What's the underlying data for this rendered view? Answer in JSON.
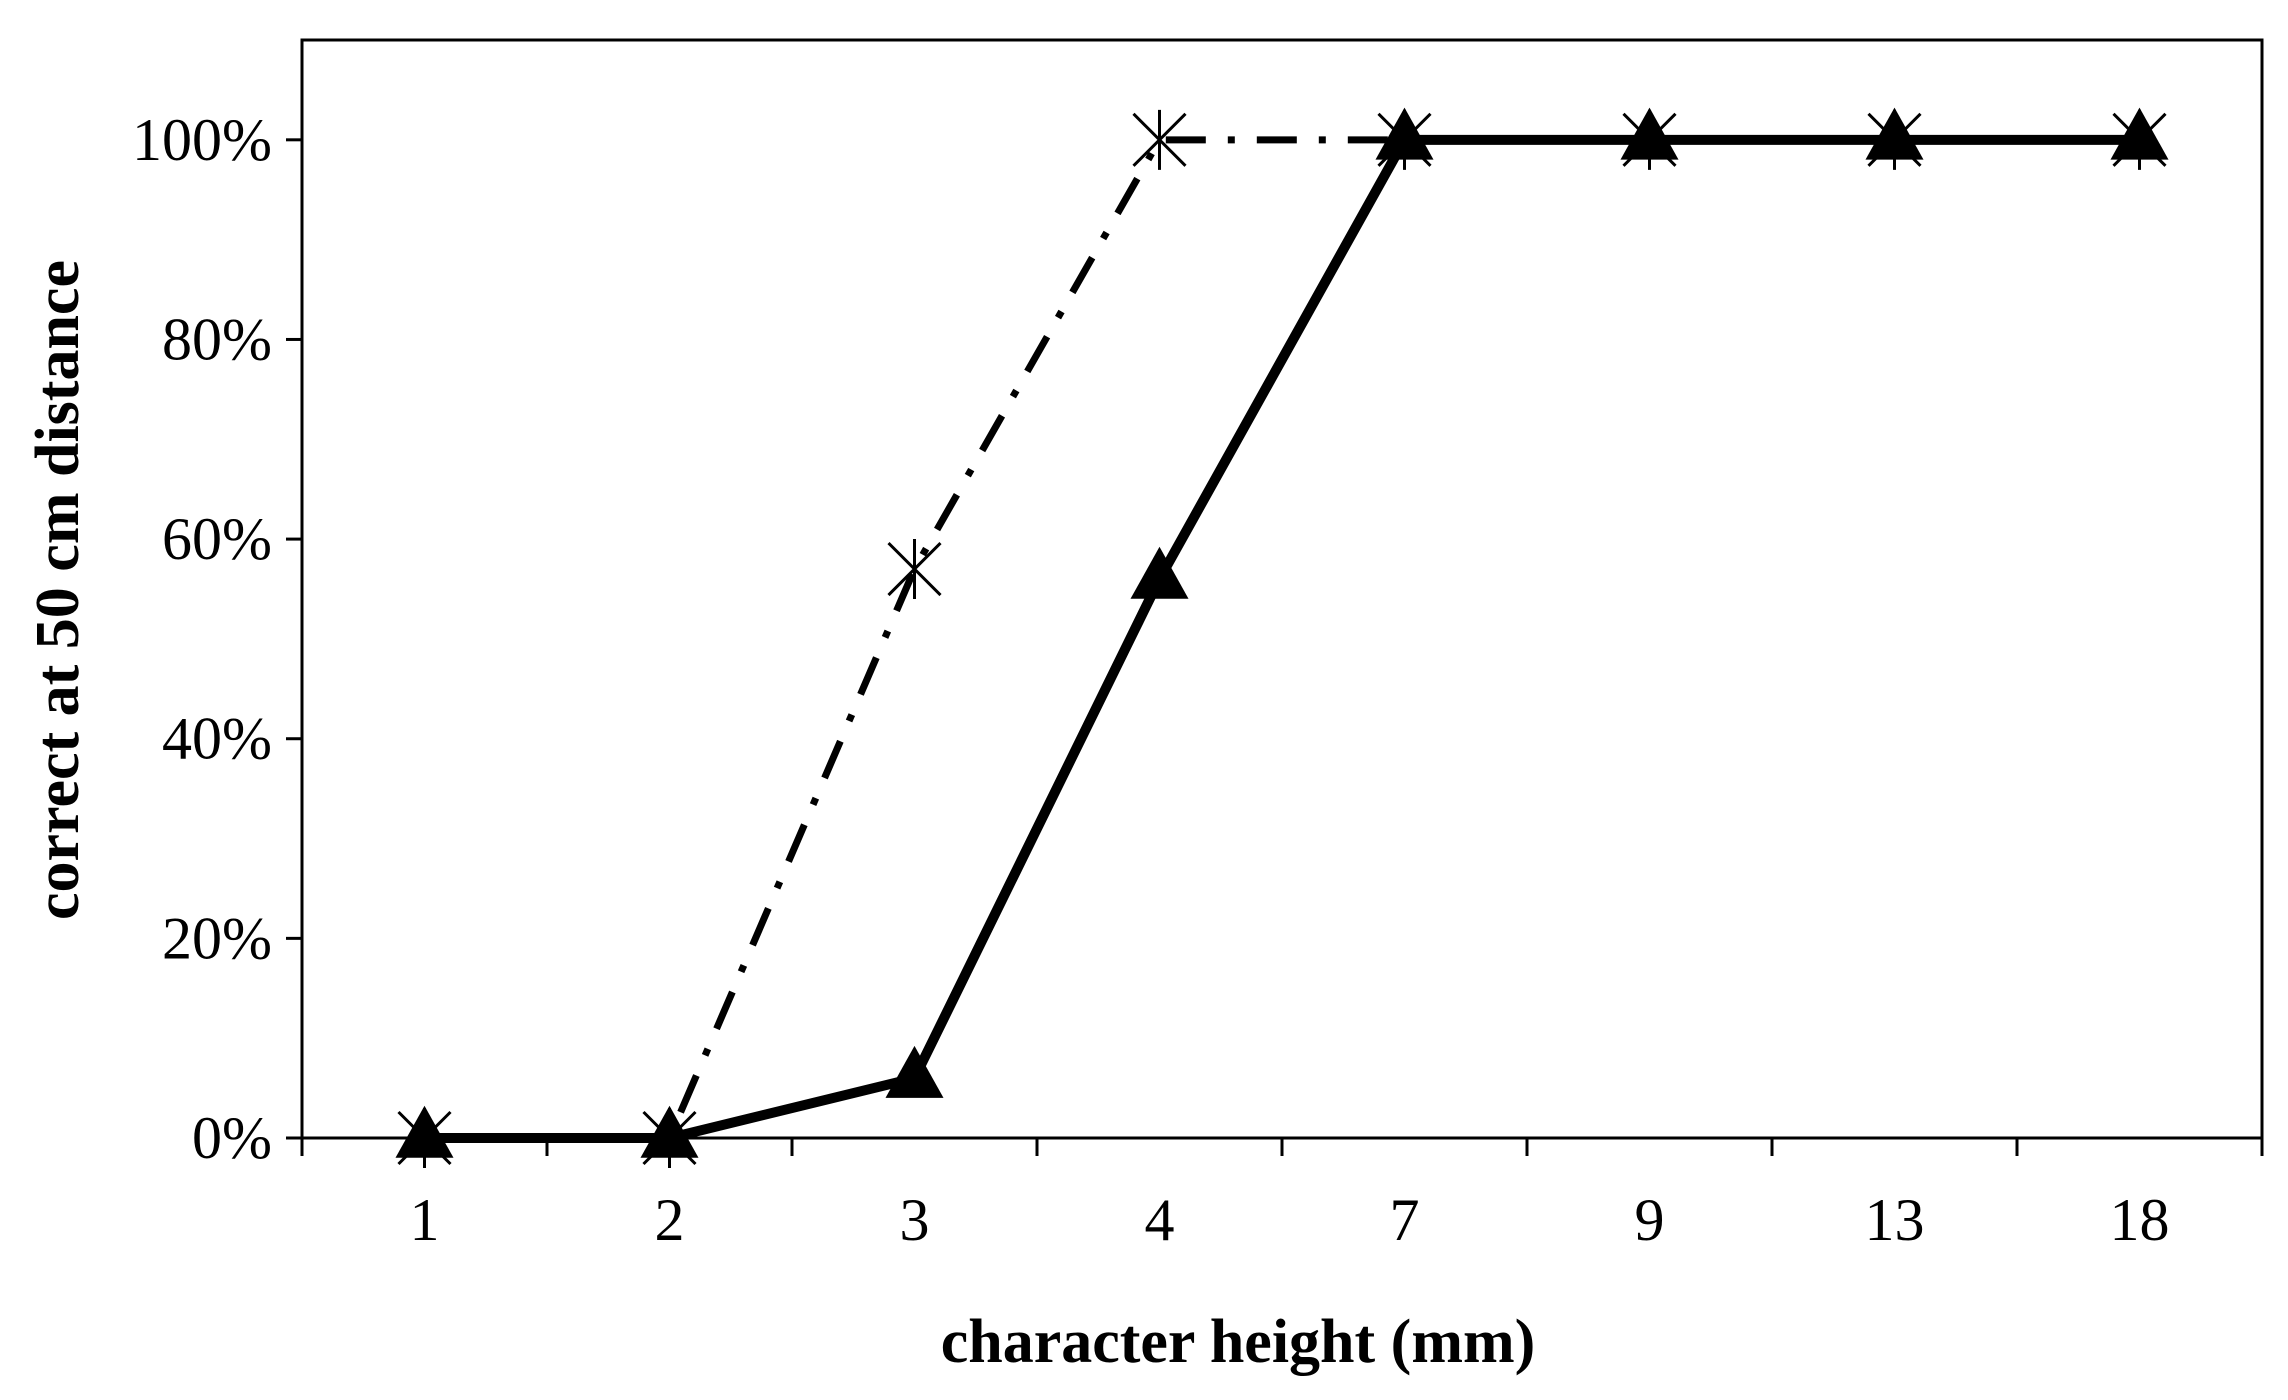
{
  "chart_data": {
    "type": "line",
    "title": "",
    "xlabel": "character height (mm)",
    "ylabel": "correct at 50 cm distance",
    "categories": [
      "1",
      "2",
      "3",
      "4",
      "7",
      "9",
      "13",
      "18"
    ],
    "y_ticks": [
      "0%",
      "20%",
      "40%",
      "60%",
      "80%",
      "100%"
    ],
    "ylim": [
      0,
      110
    ],
    "grid": false,
    "legend": "none",
    "series": [
      {
        "marker": "asterisk",
        "line_style": "dash-dot",
        "color": "#000000",
        "values": [
          0,
          0,
          57,
          100,
          100,
          100,
          100,
          100
        ]
      },
      {
        "marker": "triangle",
        "line_style": "solid",
        "color": "#000000",
        "values": [
          0,
          0,
          6,
          56,
          100,
          100,
          100,
          100
        ]
      }
    ]
  }
}
